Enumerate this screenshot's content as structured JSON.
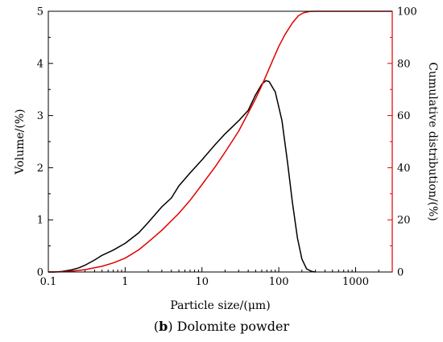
{
  "chart_data": {
    "type": "line",
    "xlabel": "Particle size/(μm)",
    "ylabel_left": "Volume/(%)",
    "ylabel_right": "Cumulative distribution/(%)",
    "x_scale": "log",
    "xlim": [
      0.1,
      3000
    ],
    "ylim_left": [
      0,
      5
    ],
    "ylim_right": [
      0,
      100
    ],
    "x_ticks": [
      "0.1",
      "1",
      "10",
      "100",
      "1000"
    ],
    "y_ticks_left": [
      "0",
      "1",
      "2",
      "3",
      "4",
      "5"
    ],
    "y_ticks_right": [
      "0",
      "20",
      "40",
      "60",
      "80",
      "100"
    ],
    "grid": false,
    "series": [
      {
        "axis": "left",
        "color": "#000000",
        "points": [
          [
            0.1,
            0
          ],
          [
            0.12,
            0
          ],
          [
            0.15,
            0.01
          ],
          [
            0.2,
            0.04
          ],
          [
            0.25,
            0.08
          ],
          [
            0.3,
            0.13
          ],
          [
            0.4,
            0.23
          ],
          [
            0.5,
            0.32
          ],
          [
            0.7,
            0.42
          ],
          [
            1,
            0.55
          ],
          [
            1.5,
            0.75
          ],
          [
            2,
            0.95
          ],
          [
            3,
            1.25
          ],
          [
            4,
            1.42
          ],
          [
            5,
            1.65
          ],
          [
            7,
            1.9
          ],
          [
            10,
            2.15
          ],
          [
            15,
            2.45
          ],
          [
            20,
            2.65
          ],
          [
            30,
            2.9
          ],
          [
            40,
            3.1
          ],
          [
            50,
            3.4
          ],
          [
            60,
            3.6
          ],
          [
            68,
            3.67
          ],
          [
            75,
            3.65
          ],
          [
            90,
            3.45
          ],
          [
            110,
            2.9
          ],
          [
            130,
            2.1
          ],
          [
            150,
            1.35
          ],
          [
            175,
            0.65
          ],
          [
            200,
            0.25
          ],
          [
            230,
            0.06
          ],
          [
            270,
            0.01
          ],
          [
            300,
            0
          ]
        ]
      },
      {
        "axis": "right",
        "color": "#e00000",
        "points": [
          [
            0.1,
            0
          ],
          [
            0.15,
            0.1
          ],
          [
            0.2,
            0.3
          ],
          [
            0.3,
            0.9
          ],
          [
            0.5,
            2.2
          ],
          [
            0.7,
            3.5
          ],
          [
            1,
            5.3
          ],
          [
            1.5,
            8.5
          ],
          [
            2,
            11.5
          ],
          [
            3,
            16
          ],
          [
            5,
            22.5
          ],
          [
            7,
            27.5
          ],
          [
            10,
            33.5
          ],
          [
            15,
            40.5
          ],
          [
            20,
            46
          ],
          [
            30,
            54
          ],
          [
            40,
            61
          ],
          [
            50,
            66.5
          ],
          [
            60,
            71.5
          ],
          [
            70,
            76
          ],
          [
            80,
            80
          ],
          [
            100,
            86.5
          ],
          [
            120,
            91
          ],
          [
            150,
            95.5
          ],
          [
            180,
            98.3
          ],
          [
            210,
            99.4
          ],
          [
            250,
            99.9
          ],
          [
            300,
            100
          ],
          [
            3000,
            100
          ]
        ]
      }
    ]
  },
  "caption": {
    "label": "b",
    "text": "Dolomite powder"
  }
}
